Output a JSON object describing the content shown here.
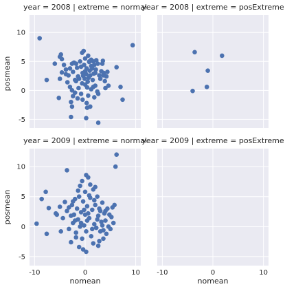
{
  "chart_data": {
    "type": "scatter",
    "xlabel": "nomean",
    "ylabel": "posmean",
    "xlim": [
      -11,
      11
    ],
    "ylim": [
      -6.5,
      13
    ],
    "x_ticks": [
      -10,
      0,
      10
    ],
    "y_ticks": [
      -5,
      0,
      5,
      10
    ],
    "grid": true,
    "color": "#4c72b0",
    "panels": [
      {
        "title": "year = 2008 | extreme = normal",
        "points": [
          [
            -9.0,
            9.0
          ],
          [
            -7.6,
            1.8
          ],
          [
            -6.0,
            4.6
          ],
          [
            -5.0,
            5.8
          ],
          [
            -4.8,
            6.2
          ],
          [
            -4.6,
            3.1
          ],
          [
            -4.2,
            4.4
          ],
          [
            -3.8,
            3.6
          ],
          [
            -3.5,
            1.4
          ],
          [
            -3.3,
            2.6
          ],
          [
            -3.0,
            0.6
          ],
          [
            -2.6,
            4.6
          ],
          [
            -2.6,
            0.0
          ],
          [
            -2.4,
            3.2
          ],
          [
            -2.2,
            4.8
          ],
          [
            -2.0,
            1.8
          ],
          [
            -1.8,
            1.6
          ],
          [
            -1.6,
            3.9
          ],
          [
            -1.4,
            2.4
          ],
          [
            -1.3,
            0.4
          ],
          [
            -1.2,
            2.0
          ],
          [
            -1.0,
            5.0
          ],
          [
            -0.8,
            4.1
          ],
          [
            -0.6,
            6.5
          ],
          [
            -0.5,
            3.0
          ],
          [
            -0.4,
            2.5
          ],
          [
            -0.3,
            6.8
          ],
          [
            -0.2,
            4.4
          ],
          [
            -0.1,
            2.0
          ],
          [
            0.0,
            3.3
          ],
          [
            0.0,
            5.5
          ],
          [
            0.0,
            1.0
          ],
          [
            0.2,
            2.8
          ],
          [
            0.3,
            3.8
          ],
          [
            0.4,
            0.5
          ],
          [
            0.5,
            1.5
          ],
          [
            0.6,
            6.0
          ],
          [
            0.7,
            2.2
          ],
          [
            0.8,
            4.9
          ],
          [
            0.9,
            3.4
          ],
          [
            1.0,
            2.6
          ],
          [
            1.2,
            5.3
          ],
          [
            1.2,
            0.2
          ],
          [
            1.4,
            3.8
          ],
          [
            1.5,
            1.8
          ],
          [
            1.6,
            5.0
          ],
          [
            1.7,
            2.9
          ],
          [
            1.8,
            4.4
          ],
          [
            2.0,
            0.8
          ],
          [
            2.1,
            3.6
          ],
          [
            2.2,
            5.2
          ],
          [
            2.4,
            -0.2
          ],
          [
            2.5,
            4.6
          ],
          [
            2.8,
            2.6
          ],
          [
            3.0,
            2.0
          ],
          [
            3.2,
            3.3
          ],
          [
            3.4,
            4.6
          ],
          [
            3.5,
            5.1
          ],
          [
            3.7,
            3.0
          ],
          [
            3.9,
            1.6
          ],
          [
            4.0,
            0.4
          ],
          [
            4.2,
            2.4
          ],
          [
            4.4,
            3.2
          ],
          [
            4.6,
            0.8
          ],
          [
            -2.4,
            -1.0
          ],
          [
            -2.0,
            -0.4
          ],
          [
            -1.5,
            -1.4
          ],
          [
            -0.5,
            -1.6
          ],
          [
            0.3,
            -2.2
          ],
          [
            1.0,
            -2.8
          ],
          [
            1.8,
            -1.2
          ],
          [
            2.6,
            -0.6
          ],
          [
            -0.8,
            -0.6
          ],
          [
            0.6,
            -0.9
          ],
          [
            -3.8,
            2.8
          ],
          [
            -1.8,
            4.6
          ],
          [
            0.8,
            5.0
          ],
          [
            2.0,
            3.0
          ],
          [
            -5.0,
            2.0
          ],
          [
            -5.2,
            -1.3
          ],
          [
            -2.8,
            -2.0
          ],
          [
            -2.6,
            -2.8
          ],
          [
            -2.8,
            -4.6
          ],
          [
            0.2,
            -4.8
          ],
          [
            0.4,
            -3.0
          ],
          [
            2.6,
            -5.6
          ],
          [
            6.2,
            4.0
          ],
          [
            7.0,
            0.6
          ],
          [
            7.4,
            -1.6
          ],
          [
            9.4,
            7.8
          ],
          [
            -4.6,
            5.4
          ],
          [
            -3.0,
            3.8
          ],
          [
            1.2,
            4.2
          ],
          [
            3.6,
            2.6
          ],
          [
            1.6,
            0.6
          ],
          [
            -0.6,
            1.2
          ]
        ]
      },
      {
        "title": "year = 2008 | extreme = posExtreme",
        "points": [
          [
            -3.6,
            6.6
          ],
          [
            1.8,
            6.0
          ],
          [
            -1.0,
            3.4
          ],
          [
            -1.2,
            0.6
          ],
          [
            -4.0,
            -0.1
          ]
        ]
      },
      {
        "title": "year = 2009 | extreme = normal",
        "points": [
          [
            -9.6,
            0.5
          ],
          [
            -8.6,
            4.6
          ],
          [
            -7.8,
            5.8
          ],
          [
            -7.6,
            -1.2
          ],
          [
            -7.2,
            3.1
          ],
          [
            -5.8,
            2.2
          ],
          [
            -5.0,
            3.3
          ],
          [
            -4.4,
            1.4
          ],
          [
            -4.0,
            4.1
          ],
          [
            -3.6,
            9.4
          ],
          [
            -3.6,
            2.6
          ],
          [
            -3.2,
            -0.4
          ],
          [
            -2.8,
            1.8
          ],
          [
            -2.6,
            3.6
          ],
          [
            -2.4,
            0.6
          ],
          [
            -2.2,
            2.0
          ],
          [
            -2.0,
            4.6
          ],
          [
            -1.8,
            -1.0
          ],
          [
            -1.6,
            3.0
          ],
          [
            -1.4,
            1.2
          ],
          [
            -1.2,
            5.0
          ],
          [
            -1.0,
            6.8
          ],
          [
            -0.8,
            2.4
          ],
          [
            -0.6,
            -2.0
          ],
          [
            -0.4,
            4.2
          ],
          [
            -0.2,
            0.2
          ],
          [
            0.0,
            5.8
          ],
          [
            0.0,
            2.0
          ],
          [
            0.2,
            -0.8
          ],
          [
            0.4,
            3.4
          ],
          [
            0.6,
            8.2
          ],
          [
            0.8,
            1.4
          ],
          [
            1.0,
            4.8
          ],
          [
            1.2,
            -1.6
          ],
          [
            1.4,
            2.8
          ],
          [
            1.6,
            6.2
          ],
          [
            1.8,
            0.4
          ],
          [
            2.0,
            3.6
          ],
          [
            2.2,
            -0.2
          ],
          [
            2.4,
            5.0
          ],
          [
            2.6,
            1.8
          ],
          [
            2.8,
            -2.4
          ],
          [
            3.0,
            2.6
          ],
          [
            3.2,
            0.8
          ],
          [
            3.4,
            4.0
          ],
          [
            3.6,
            -0.6
          ],
          [
            3.8,
            2.2
          ],
          [
            4.0,
            1.0
          ],
          [
            4.2,
            -1.2
          ],
          [
            4.4,
            3.0
          ],
          [
            4.6,
            0.0
          ],
          [
            4.8,
            2.0
          ],
          [
            5.0,
            -0.4
          ],
          [
            5.2,
            1.6
          ],
          [
            5.4,
            3.2
          ],
          [
            5.6,
            0.6
          ],
          [
            5.8,
            3.6
          ],
          [
            6.0,
            10.0
          ],
          [
            6.2,
            12.0
          ],
          [
            -1.2,
            -3.4
          ],
          [
            -0.4,
            -3.8
          ],
          [
            0.2,
            -4.2
          ],
          [
            1.6,
            -2.8
          ],
          [
            2.6,
            -3.2
          ],
          [
            3.6,
            -2.0
          ],
          [
            -2.8,
            -2.6
          ],
          [
            -1.8,
            -1.8
          ],
          [
            -0.8,
            0.6
          ],
          [
            0.6,
            2.2
          ],
          [
            1.0,
            7.0
          ],
          [
            2.0,
            6.6
          ],
          [
            -2.0,
            1.0
          ],
          [
            3.0,
            -0.8
          ],
          [
            4.0,
            2.6
          ],
          [
            -4.8,
            -0.8
          ],
          [
            -5.6,
            2.0
          ],
          [
            -3.2,
            3.2
          ],
          [
            -1.0,
            0.0
          ],
          [
            0.4,
            1.0
          ],
          [
            1.4,
            -0.4
          ],
          [
            2.4,
            1.2
          ],
          [
            3.4,
            0.2
          ],
          [
            -0.2,
            2.8
          ],
          [
            0.8,
            5.2
          ],
          [
            1.8,
            4.4
          ],
          [
            2.8,
            3.0
          ],
          [
            -2.4,
            4.2
          ],
          [
            -1.4,
            6.0
          ],
          [
            -0.6,
            7.6
          ],
          [
            0.2,
            8.6
          ]
        ]
      },
      {
        "title": "year = 2009 | extreme = posExtreme",
        "points": []
      }
    ]
  }
}
